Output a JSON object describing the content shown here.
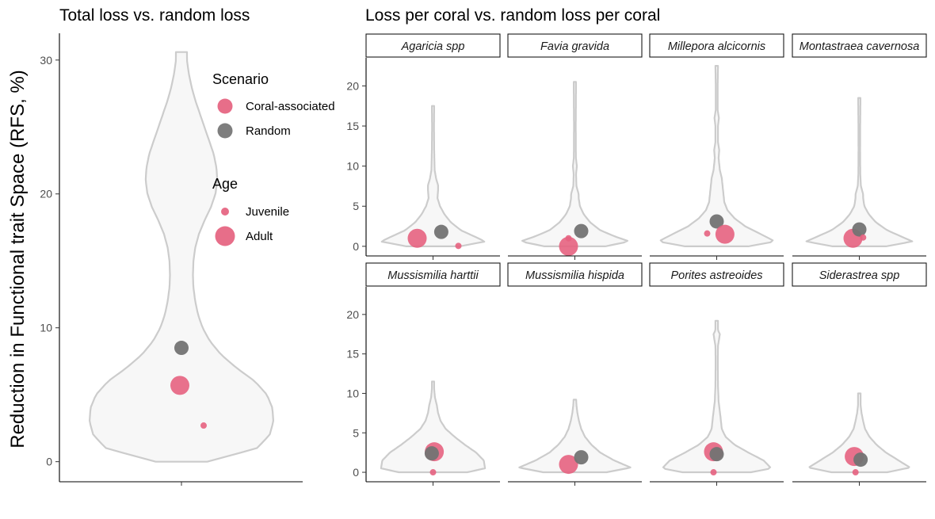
{
  "chart_data": [
    {
      "type": "violin",
      "title": "Total loss vs. random loss",
      "ylabel": "Reduction in Functional trait Space (RFS, %)",
      "ylim": [
        -1.5,
        32
      ],
      "yticks": [
        0,
        10,
        20,
        30
      ],
      "violin_range": [
        0,
        30.6
      ],
      "violin_profile": [
        [
          0,
          0.28
        ],
        [
          1,
          0.82
        ],
        [
          2,
          0.96
        ],
        [
          3,
          1.0
        ],
        [
          4,
          0.99
        ],
        [
          5,
          0.93
        ],
        [
          6,
          0.8
        ],
        [
          7,
          0.6
        ],
        [
          8,
          0.43
        ],
        [
          9,
          0.31
        ],
        [
          10,
          0.23
        ],
        [
          11,
          0.18
        ],
        [
          12,
          0.15
        ],
        [
          13,
          0.13
        ],
        [
          14,
          0.125
        ],
        [
          15,
          0.13
        ],
        [
          16,
          0.15
        ],
        [
          17,
          0.19
        ],
        [
          18,
          0.25
        ],
        [
          19,
          0.32
        ],
        [
          20,
          0.37
        ],
        [
          21,
          0.39
        ],
        [
          22,
          0.38
        ],
        [
          23,
          0.35
        ],
        [
          24,
          0.3
        ],
        [
          25,
          0.25
        ],
        [
          26,
          0.2
        ],
        [
          27,
          0.15
        ],
        [
          28,
          0.11
        ],
        [
          29,
          0.08
        ],
        [
          30,
          0.06
        ],
        [
          30.6,
          0.06
        ]
      ],
      "points": [
        {
          "scenario": "Random",
          "age": "Adult",
          "value": 8.5
        },
        {
          "scenario": "Coral-associated",
          "age": "Adult",
          "value": 5.7
        },
        {
          "scenario": "Coral-associated",
          "age": "Juvenile",
          "value": 2.7
        }
      ]
    },
    {
      "type": "violin",
      "title": "Loss per coral vs. random loss per coral",
      "ylim": [
        -1.2,
        23.5
      ],
      "yticks": [
        0,
        5,
        10,
        15,
        20
      ],
      "facets": [
        {
          "name": "Agaricia spp",
          "max": 17.5,
          "profile": [
            [
              0,
              0.42
            ],
            [
              0.6,
              0.82
            ],
            [
              1.2,
              0.66
            ],
            [
              2,
              0.44
            ],
            [
              3,
              0.28
            ],
            [
              4,
              0.18
            ],
            [
              5,
              0.11
            ],
            [
              6,
              0.07
            ],
            [
              7,
              0.08
            ],
            [
              7.6,
              0.08
            ],
            [
              8.4,
              0.05
            ],
            [
              9.5,
              0.025
            ],
            [
              12,
              0.018
            ],
            [
              15,
              0.015
            ],
            [
              17.5,
              0.018
            ]
          ],
          "points": [
            {
              "scenario": "Coral-associated",
              "age": "Adult",
              "value": 1.0,
              "dx": -0.25
            },
            {
              "scenario": "Random",
              "age": "Adult",
              "value": 1.8,
              "dx": 0.13
            },
            {
              "scenario": "Coral-associated",
              "age": "Juvenile",
              "value": 0.05,
              "dx": 0.4
            }
          ]
        },
        {
          "name": "Favia gravida",
          "max": 20.5,
          "profile": [
            [
              0,
              0.48
            ],
            [
              0.6,
              0.86
            ],
            [
              1.2,
              0.64
            ],
            [
              2,
              0.4
            ],
            [
              3,
              0.24
            ],
            [
              4,
              0.14
            ],
            [
              5,
              0.08
            ],
            [
              6,
              0.06
            ],
            [
              6.5,
              0.06
            ],
            [
              7.5,
              0.025
            ],
            [
              9,
              0.018
            ],
            [
              10,
              0.032
            ],
            [
              11,
              0.016
            ],
            [
              15,
              0.014
            ],
            [
              20.5,
              0.018
            ]
          ],
          "points": [
            {
              "scenario": "Coral-associated",
              "age": "Adult",
              "value": 0.0,
              "dx": -0.1
            },
            {
              "scenario": "Random",
              "age": "Adult",
              "value": 1.9,
              "dx": 0.1
            },
            {
              "scenario": "Coral-associated",
              "age": "Juvenile",
              "value": 1.0,
              "dx": -0.1
            }
          ]
        },
        {
          "name": "Millepora alcicornis",
          "max": 22.5,
          "profile": [
            [
              0,
              0.5
            ],
            [
              0.6,
              0.92
            ],
            [
              1.5,
              0.7
            ],
            [
              2.5,
              0.45
            ],
            [
              3.5,
              0.28
            ],
            [
              4.5,
              0.17
            ],
            [
              5.5,
              0.12
            ],
            [
              7,
              0.1
            ],
            [
              8.5,
              0.08
            ],
            [
              9.5,
              0.05
            ],
            [
              11,
              0.03
            ],
            [
              12,
              0.04
            ],
            [
              13,
              0.02
            ],
            [
              15,
              0.02
            ],
            [
              16,
              0.035
            ],
            [
              17,
              0.015
            ],
            [
              20,
              0.015
            ],
            [
              22.5,
              0.02
            ]
          ],
          "points": [
            {
              "scenario": "Random",
              "age": "Adult",
              "value": 3.1,
              "dx": 0.0
            },
            {
              "scenario": "Coral-associated",
              "age": "Adult",
              "value": 1.5,
              "dx": 0.13
            },
            {
              "scenario": "Coral-associated",
              "age": "Juvenile",
              "value": 1.6,
              "dx": -0.15
            }
          ]
        },
        {
          "name": "Montastraea cavernosa",
          "max": 18.5,
          "profile": [
            [
              0,
              0.42
            ],
            [
              0.6,
              0.84
            ],
            [
              1.3,
              0.64
            ],
            [
              2,
              0.44
            ],
            [
              3,
              0.26
            ],
            [
              4,
              0.15
            ],
            [
              5,
              0.08
            ],
            [
              6,
              0.06
            ],
            [
              6.5,
              0.06
            ],
            [
              7.5,
              0.025
            ],
            [
              9,
              0.015
            ],
            [
              12,
              0.013
            ],
            [
              15,
              0.014
            ],
            [
              18.5,
              0.018
            ]
          ],
          "points": [
            {
              "scenario": "Coral-associated",
              "age": "Adult",
              "value": 1.0,
              "dx": -0.1
            },
            {
              "scenario": "Random",
              "age": "Adult",
              "value": 2.1,
              "dx": 0.0
            },
            {
              "scenario": "Coral-associated",
              "age": "Juvenile",
              "value": 1.1,
              "dx": 0.06
            }
          ]
        },
        {
          "name": "Mussismilia harttii",
          "max": 11.5,
          "profile": [
            [
              0,
              0.54
            ],
            [
              0.5,
              0.82
            ],
            [
              1.5,
              0.8
            ],
            [
              2.5,
              0.68
            ],
            [
              3.5,
              0.5
            ],
            [
              4.5,
              0.34
            ],
            [
              5.5,
              0.2
            ],
            [
              6.5,
              0.12
            ],
            [
              7.5,
              0.08
            ],
            [
              8.5,
              0.06
            ],
            [
              9.5,
              0.03
            ],
            [
              10.5,
              0.018
            ],
            [
              11.5,
              0.018
            ]
          ],
          "points": [
            {
              "scenario": "Coral-associated",
              "age": "Adult",
              "value": 2.6,
              "dx": 0.02
            },
            {
              "scenario": "Random",
              "age": "Adult",
              "value": 2.4,
              "dx": -0.02
            },
            {
              "scenario": "Coral-associated",
              "age": "Juvenile",
              "value": 0.0,
              "dx": 0.0
            }
          ]
        },
        {
          "name": "Mussismilia hispida",
          "max": 9.2,
          "profile": [
            [
              0,
              0.5
            ],
            [
              0.6,
              0.88
            ],
            [
              1.5,
              0.62
            ],
            [
              2.5,
              0.4
            ],
            [
              3.5,
              0.26
            ],
            [
              4.5,
              0.16
            ],
            [
              5.5,
              0.1
            ],
            [
              6.5,
              0.065
            ],
            [
              7.5,
              0.04
            ],
            [
              8.5,
              0.025
            ],
            [
              9.2,
              0.02
            ]
          ],
          "points": [
            {
              "scenario": "Coral-associated",
              "age": "Adult",
              "value": 1.0,
              "dx": -0.1
            },
            {
              "scenario": "Random",
              "age": "Adult",
              "value": 1.9,
              "dx": 0.1
            }
          ]
        },
        {
          "name": "Porites astreoides",
          "max": 19.2,
          "profile": [
            [
              0,
              0.54
            ],
            [
              0.5,
              0.86
            ],
            [
              1.5,
              0.74
            ],
            [
              2.5,
              0.5
            ],
            [
              3.5,
              0.28
            ],
            [
              4.5,
              0.14
            ],
            [
              5.5,
              0.08
            ],
            [
              7,
              0.06
            ],
            [
              8,
              0.045
            ],
            [
              9,
              0.03
            ],
            [
              11,
              0.02
            ],
            [
              14,
              0.017
            ],
            [
              16,
              0.02
            ],
            [
              17.5,
              0.05
            ],
            [
              18,
              0.02
            ],
            [
              19.2,
              0.02
            ]
          ],
          "points": [
            {
              "scenario": "Coral-associated",
              "age": "Adult",
              "value": 2.6,
              "dx": -0.05
            },
            {
              "scenario": "Random",
              "age": "Adult",
              "value": 2.3,
              "dx": 0.0
            },
            {
              "scenario": "Coral-associated",
              "age": "Juvenile",
              "value": 0.0,
              "dx": -0.05
            }
          ]
        },
        {
          "name": "Siderastrea spp",
          "max": 10.0,
          "profile": [
            [
              0,
              0.44
            ],
            [
              0.6,
              0.8
            ],
            [
              1.5,
              0.62
            ],
            [
              2.5,
              0.42
            ],
            [
              3.5,
              0.27
            ],
            [
              4.5,
              0.16
            ],
            [
              5.5,
              0.09
            ],
            [
              6.5,
              0.06
            ],
            [
              7.5,
              0.035
            ],
            [
              8.5,
              0.02
            ],
            [
              10,
              0.02
            ]
          ],
          "points": [
            {
              "scenario": "Coral-associated",
              "age": "Adult",
              "value": 2.0,
              "dx": -0.08
            },
            {
              "scenario": "Random",
              "age": "Adult",
              "value": 1.6,
              "dx": 0.02
            },
            {
              "scenario": "Coral-associated",
              "age": "Juvenile",
              "value": 0.0,
              "dx": -0.06
            }
          ]
        }
      ]
    }
  ],
  "legend": {
    "position": "inside-top-left-panel",
    "scenario_title": "Scenario",
    "scenario_items": [
      {
        "label": "Coral-associated",
        "color": "#e5627f"
      },
      {
        "label": "Random",
        "color": "#737373"
      }
    ],
    "age_title": "Age",
    "age_items": [
      {
        "label": "Juvenile",
        "size": "small"
      },
      {
        "label": "Adult",
        "size": "large"
      }
    ]
  },
  "colors": {
    "coral": "#e5627f",
    "random": "#737373",
    "violin_fill": "#f7f7f7",
    "violin_stroke": "#cccccc"
  }
}
